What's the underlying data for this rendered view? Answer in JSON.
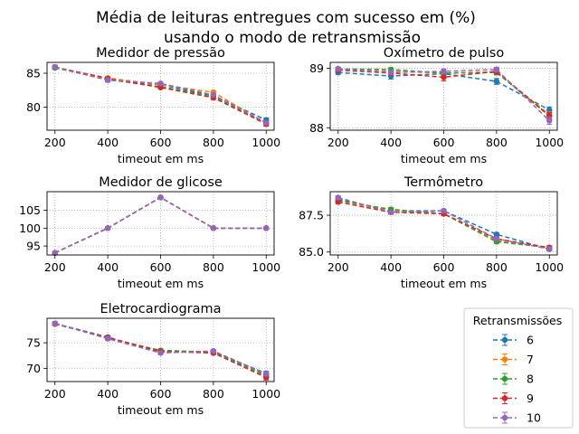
{
  "figure": {
    "title_line1": "Média de leituras entregues com sucesso em (%)",
    "title_line2": "usando o modo de retransmissão"
  },
  "legend": {
    "title": "Retransmissões",
    "entries": [
      {
        "label": "6",
        "color": "#1f77b4"
      },
      {
        "label": "7",
        "color": "#ff7f0e"
      },
      {
        "label": "8",
        "color": "#2ca02c"
      },
      {
        "label": "9",
        "color": "#d62728"
      },
      {
        "label": "10",
        "color": "#9467bd"
      }
    ],
    "placement": "lower-right"
  },
  "chart_data": [
    {
      "type": "line",
      "title": "Medidor de pressão",
      "xlabel": "timeout em ms",
      "ylabel": "",
      "x": [
        200,
        400,
        600,
        800,
        1000
      ],
      "xlim": [
        170,
        1030
      ],
      "ylim": [
        76.6,
        86.6
      ],
      "yticks": [
        80,
        85
      ],
      "grid": true,
      "series": [
        {
          "name": "6",
          "values": [
            85.9,
            84.0,
            83.3,
            81.7,
            78.1
          ],
          "err": [
            0.3,
            0.3,
            0.3,
            0.3,
            0.3
          ]
        },
        {
          "name": "7",
          "values": [
            85.9,
            84.3,
            83.3,
            82.2,
            77.6
          ],
          "err": [
            0.2,
            0.2,
            0.2,
            0.2,
            0.2
          ]
        },
        {
          "name": "8",
          "values": [
            85.8,
            84.1,
            83.0,
            81.6,
            77.6
          ],
          "err": [
            0.2,
            0.2,
            0.2,
            0.2,
            0.2
          ]
        },
        {
          "name": "9",
          "values": [
            85.9,
            84.2,
            82.9,
            81.4,
            77.5
          ],
          "err": [
            0.2,
            0.2,
            0.2,
            0.3,
            0.3
          ]
        },
        {
          "name": "10",
          "values": [
            85.9,
            84.0,
            83.5,
            81.8,
            77.7
          ],
          "err": [
            0.2,
            0.2,
            0.2,
            0.2,
            0.2
          ]
        }
      ]
    },
    {
      "type": "line",
      "title": "Oxímetro de pulso",
      "xlabel": "timeout em ms",
      "ylabel": "",
      "x": [
        200,
        400,
        600,
        800,
        1000
      ],
      "xlim": [
        170,
        1030
      ],
      "ylim": [
        87.96,
        89.1
      ],
      "yticks": [
        88,
        89
      ],
      "grid": true,
      "series": [
        {
          "name": "6",
          "values": [
            88.93,
            88.87,
            88.91,
            88.78,
            88.3
          ],
          "err": [
            0.03,
            0.05,
            0.05,
            0.05,
            0.05
          ]
        },
        {
          "name": "7",
          "values": [
            88.98,
            88.95,
            88.92,
            88.94,
            88.22
          ],
          "err": [
            0.03,
            0.03,
            0.04,
            0.04,
            0.05
          ]
        },
        {
          "name": "8",
          "values": [
            88.99,
            88.98,
            88.92,
            88.93,
            88.2
          ],
          "err": [
            0.03,
            0.03,
            0.04,
            0.04,
            0.05
          ]
        },
        {
          "name": "9",
          "values": [
            88.97,
            88.92,
            88.85,
            88.95,
            88.2
          ],
          "err": [
            0.03,
            0.04,
            0.06,
            0.05,
            0.06
          ]
        },
        {
          "name": "10",
          "values": [
            88.99,
            88.93,
            88.95,
            88.98,
            88.12
          ],
          "err": [
            0.03,
            0.04,
            0.04,
            0.04,
            0.06
          ]
        }
      ]
    },
    {
      "type": "line",
      "title": "Medidor de glicose",
      "xlabel": "timeout em ms",
      "ylabel": "",
      "x": [
        200,
        400,
        600,
        800,
        1000
      ],
      "xlim": [
        170,
        1030
      ],
      "ylim": [
        92.5,
        110.2
      ],
      "yticks": [
        95,
        100,
        105
      ],
      "grid": true,
      "series": [
        {
          "name": "6",
          "values": [
            93.1,
            100.0,
            108.6,
            100.0,
            100.0
          ]
        },
        {
          "name": "7",
          "values": [
            93.1,
            100.0,
            108.6,
            100.0,
            100.0
          ]
        },
        {
          "name": "8",
          "values": [
            93.1,
            100.0,
            108.6,
            100.0,
            100.0
          ]
        },
        {
          "name": "9",
          "values": [
            93.1,
            100.0,
            108.6,
            100.0,
            100.0
          ]
        },
        {
          "name": "10",
          "values": [
            93.1,
            100.0,
            108.6,
            100.0,
            100.0
          ]
        }
      ]
    },
    {
      "type": "line",
      "title": "Termômetro",
      "xlabel": "timeout em ms",
      "ylabel": "",
      "x": [
        200,
        400,
        600,
        800,
        1000
      ],
      "xlim": [
        170,
        1030
      ],
      "ylim": [
        84.8,
        89.1
      ],
      "yticks": [
        85.0,
        87.5
      ],
      "grid": true,
      "series": [
        {
          "name": "6",
          "values": [
            88.6,
            87.8,
            87.8,
            86.2,
            85.2
          ],
          "err": [
            0.12,
            0.12,
            0.12,
            0.12,
            0.12
          ]
        },
        {
          "name": "7",
          "values": [
            88.5,
            87.8,
            87.6,
            85.8,
            85.3
          ],
          "err": [
            0.12,
            0.12,
            0.12,
            0.12,
            0.12
          ]
        },
        {
          "name": "8",
          "values": [
            88.5,
            87.9,
            87.6,
            85.7,
            85.3
          ],
          "err": [
            0.12,
            0.12,
            0.12,
            0.12,
            0.12
          ]
        },
        {
          "name": "9",
          "values": [
            88.4,
            87.7,
            87.6,
            85.9,
            85.3
          ],
          "err": [
            0.12,
            0.12,
            0.12,
            0.12,
            0.12
          ]
        },
        {
          "name": "10",
          "values": [
            88.7,
            87.7,
            87.8,
            85.9,
            85.2
          ],
          "err": [
            0.12,
            0.12,
            0.12,
            0.12,
            0.12
          ]
        }
      ]
    },
    {
      "type": "line",
      "title": "Eletrocardiograma",
      "xlabel": "timeout em ms",
      "ylabel": "",
      "x": [
        200,
        400,
        600,
        800,
        1000
      ],
      "xlim": [
        170,
        1030
      ],
      "ylim": [
        67.4,
        79.8
      ],
      "yticks": [
        70,
        75
      ],
      "grid": true,
      "series": [
        {
          "name": "6",
          "values": [
            78.8,
            76.1,
            73.2,
            73.2,
            69.0
          ],
          "err": [
            0.3,
            0.3,
            0.3,
            0.3,
            0.4
          ]
        },
        {
          "name": "7",
          "values": [
            78.7,
            76.0,
            73.4,
            73.1,
            68.5
          ],
          "err": [
            0.3,
            0.3,
            0.3,
            0.3,
            0.4
          ]
        },
        {
          "name": "8",
          "values": [
            78.8,
            75.9,
            73.5,
            73.2,
            68.6
          ],
          "err": [
            0.3,
            0.3,
            0.3,
            0.3,
            0.4
          ]
        },
        {
          "name": "9",
          "values": [
            78.7,
            76.0,
            73.3,
            73.0,
            68.2
          ],
          "err": [
            0.3,
            0.3,
            0.3,
            0.3,
            0.5
          ]
        },
        {
          "name": "10",
          "values": [
            78.8,
            75.8,
            73.0,
            73.4,
            68.9
          ],
          "err": [
            0.3,
            0.3,
            0.3,
            0.3,
            0.4
          ]
        }
      ]
    }
  ]
}
